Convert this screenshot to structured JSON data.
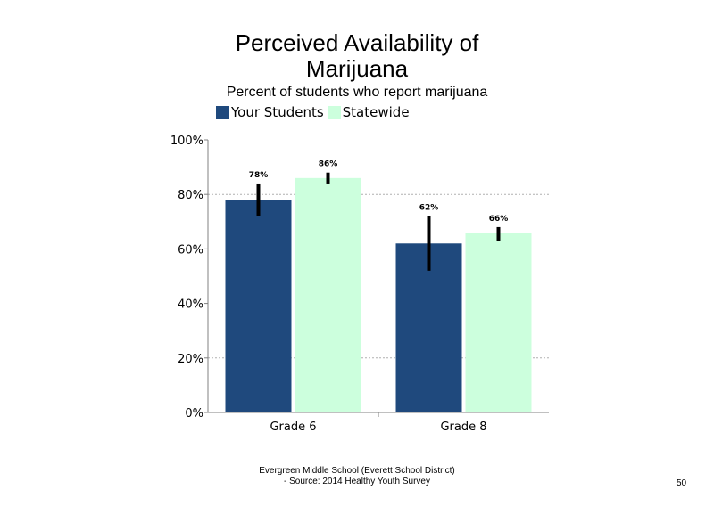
{
  "chart_data": {
    "type": "bar",
    "title_line1": "Perceived Availability of",
    "title_line2": "Marijuana",
    "subtitle": "Percent of students  who report marijuana",
    "categories": [
      "Grade 6",
      "Grade 8"
    ],
    "series": [
      {
        "name": "Your Students",
        "color": "#1f497d",
        "values": [
          78,
          62
        ],
        "error_low": [
          72,
          52
        ],
        "error_high": [
          84,
          72
        ],
        "labels": [
          "78%",
          "62%"
        ]
      },
      {
        "name": "Statewide",
        "color": "#ccffdd",
        "values": [
          86,
          66
        ],
        "error_low": [
          84,
          63
        ],
        "error_high": [
          88,
          68
        ],
        "labels": [
          "86%",
          "66%"
        ]
      }
    ],
    "ylim": [
      0,
      100
    ],
    "yticks": [
      0,
      20,
      40,
      60,
      80,
      100
    ],
    "ytick_labels": [
      "0%",
      "20%",
      "40%",
      "60%",
      "80%",
      "100%"
    ],
    "grid": "dashed horizontal at 20% and 80%",
    "legend_position": "top-left"
  },
  "footer": {
    "line1": "Evergreen Middle School (Everett School District)",
    "line2": "- Source: 2014 Healthy  Youth Survey"
  },
  "page_number": "50"
}
